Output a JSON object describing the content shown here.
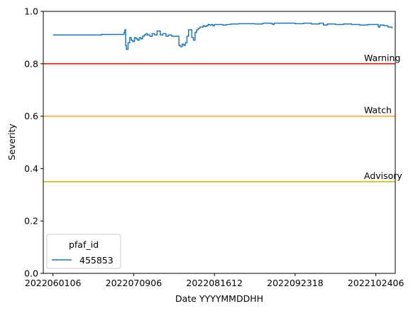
{
  "chart_data": {
    "type": "line",
    "xlabel": "Date YYYYMMDDHH",
    "ylabel": "Severity",
    "ylim": [
      0.0,
      1.0
    ],
    "xlim": [
      -0.12,
      4.24
    ],
    "x_ticks": [
      {
        "value": 0,
        "label": "2022060106"
      },
      {
        "value": 1,
        "label": "2022070906"
      },
      {
        "value": 2,
        "label": "2022081612"
      },
      {
        "value": 3,
        "label": "2022092318"
      },
      {
        "value": 4,
        "label": "2022102406"
      }
    ],
    "y_ticks": [
      {
        "value": 0.0,
        "label": "0.0"
      },
      {
        "value": 0.2,
        "label": "0.2"
      },
      {
        "value": 0.4,
        "label": "0.4"
      },
      {
        "value": 0.6,
        "label": "0.6"
      },
      {
        "value": 0.8,
        "label": "0.8"
      },
      {
        "value": 1.0,
        "label": "1.0"
      }
    ],
    "grid": false,
    "thresholds": [
      {
        "label": "Warning",
        "value": 0.8,
        "color": "#ff0000"
      },
      {
        "label": "Watch",
        "value": 0.6,
        "color": "#ffa500"
      },
      {
        "label": "Advisory",
        "value": 0.35,
        "color": "#bfbf00"
      }
    ],
    "legend": {
      "title": "pfaf_id",
      "placement": "lower-left"
    },
    "series": [
      {
        "name": "455853",
        "color": "#1f77b4",
        "x": [
          0.0,
          0.3,
          0.5,
          0.6,
          0.8,
          0.88,
          0.89,
          0.9,
          0.91,
          0.93,
          0.95,
          0.97,
          0.99,
          1.01,
          1.03,
          1.05,
          1.07,
          1.09,
          1.11,
          1.13,
          1.15,
          1.17,
          1.2,
          1.23,
          1.26,
          1.29,
          1.3,
          1.33,
          1.36,
          1.4,
          1.43,
          1.47,
          1.52,
          1.56,
          1.58,
          1.6,
          1.62,
          1.64,
          1.66,
          1.68,
          1.7,
          1.72,
          1.74,
          1.76,
          1.78,
          1.8,
          1.82,
          1.84,
          1.86,
          1.88,
          1.9,
          1.92,
          1.94,
          1.96,
          1.98,
          2.0,
          2.03,
          2.06,
          2.1,
          2.15,
          2.2,
          2.3,
          2.4,
          2.5,
          2.6,
          2.7,
          2.72,
          2.74,
          2.8,
          2.9,
          3.0,
          3.1,
          3.2,
          3.3,
          3.35,
          3.4,
          3.5,
          3.6,
          3.7,
          3.8,
          3.9,
          4.0,
          4.03,
          4.05,
          4.1,
          4.15,
          4.2
        ],
        "y": [
          0.91,
          0.91,
          0.91,
          0.912,
          0.912,
          0.92,
          0.93,
          0.87,
          0.855,
          0.88,
          0.9,
          0.89,
          0.885,
          0.9,
          0.895,
          0.89,
          0.9,
          0.895,
          0.905,
          0.91,
          0.915,
          0.91,
          0.905,
          0.915,
          0.91,
          0.925,
          0.925,
          0.91,
          0.915,
          0.905,
          0.91,
          0.905,
          0.905,
          0.87,
          0.865,
          0.875,
          0.87,
          0.88,
          0.905,
          0.93,
          0.93,
          0.9,
          0.89,
          0.92,
          0.93,
          0.935,
          0.94,
          0.94,
          0.945,
          0.942,
          0.945,
          0.95,
          0.948,
          0.95,
          0.945,
          0.95,
          0.95,
          0.95,
          0.948,
          0.95,
          0.952,
          0.953,
          0.953,
          0.952,
          0.955,
          0.954,
          0.95,
          0.955,
          0.955,
          0.955,
          0.953,
          0.955,
          0.952,
          0.955,
          0.948,
          0.952,
          0.95,
          0.952,
          0.95,
          0.948,
          0.95,
          0.95,
          0.94,
          0.948,
          0.945,
          0.94,
          0.935
        ]
      }
    ]
  }
}
